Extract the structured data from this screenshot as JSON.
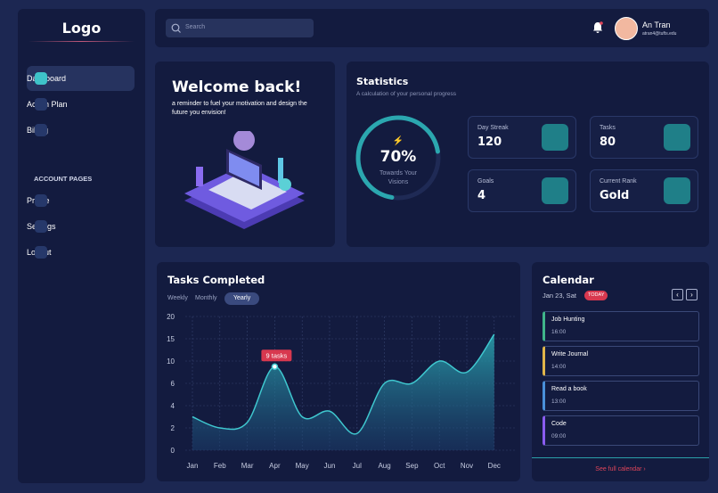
{
  "sidebar": {
    "logo": "Logo",
    "nav": [
      "Dashboard",
      "Action Plan",
      "Billing"
    ],
    "section": "ACCOUNT PAGES",
    "account": [
      "Profile",
      "Settings",
      "Logout"
    ]
  },
  "header": {
    "search": "Search",
    "user_name": "An Tran",
    "user_email": "atran4@tufts.edu"
  },
  "welcome": {
    "title": "Welcome back!",
    "text": "a reminder to fuel your motivation and design the future you envision!"
  },
  "statistics": {
    "title": "Statistics",
    "subtitle": "A calculation of your personal progress",
    "progress": {
      "value": 70,
      "label": "70%",
      "caption": "Towards Your Visions"
    },
    "cards": [
      {
        "label": "Day Streak",
        "value": 120
      },
      {
        "label": "Tasks",
        "value": 80
      },
      {
        "label": "Goals",
        "value": 4
      },
      {
        "label": "Current Rank",
        "value": "Gold"
      }
    ]
  },
  "tasks": {
    "type": "area",
    "title": "Tasks Completed",
    "tabs": [
      "Weekly",
      "Monthly",
      "Yearly"
    ],
    "active_tab": "Yearly",
    "categories": [
      "Jan",
      "Feb",
      "Mar",
      "Apr",
      "May",
      "Jun",
      "Jul",
      "Aug",
      "Sep",
      "Oct",
      "Nov",
      "Dec"
    ],
    "values": [
      3,
      2,
      2.5,
      9,
      3,
      3.5,
      1.5,
      6,
      6,
      10,
      8,
      16
    ],
    "value_labels": [
      null,
      null,
      null,
      "9 tasks",
      null,
      null,
      null,
      null,
      null,
      null,
      null,
      null
    ],
    "color": "#3fc7cf",
    "ylim": [
      0,
      20
    ],
    "yticks": [
      0,
      2,
      4,
      6,
      10,
      15,
      20
    ],
    "grid": true
  },
  "calendar": {
    "title": "Calendar",
    "date": "Jan 23, Sat",
    "badge": "TODAY",
    "events": [
      {
        "title": "Job Hunting",
        "time": "16:00"
      },
      {
        "title": "Write Journal",
        "time": "14:00"
      },
      {
        "title": "Read a book",
        "time": "13:00"
      },
      {
        "title": "Code",
        "time": "09:00"
      }
    ],
    "link": "See full calendar"
  }
}
